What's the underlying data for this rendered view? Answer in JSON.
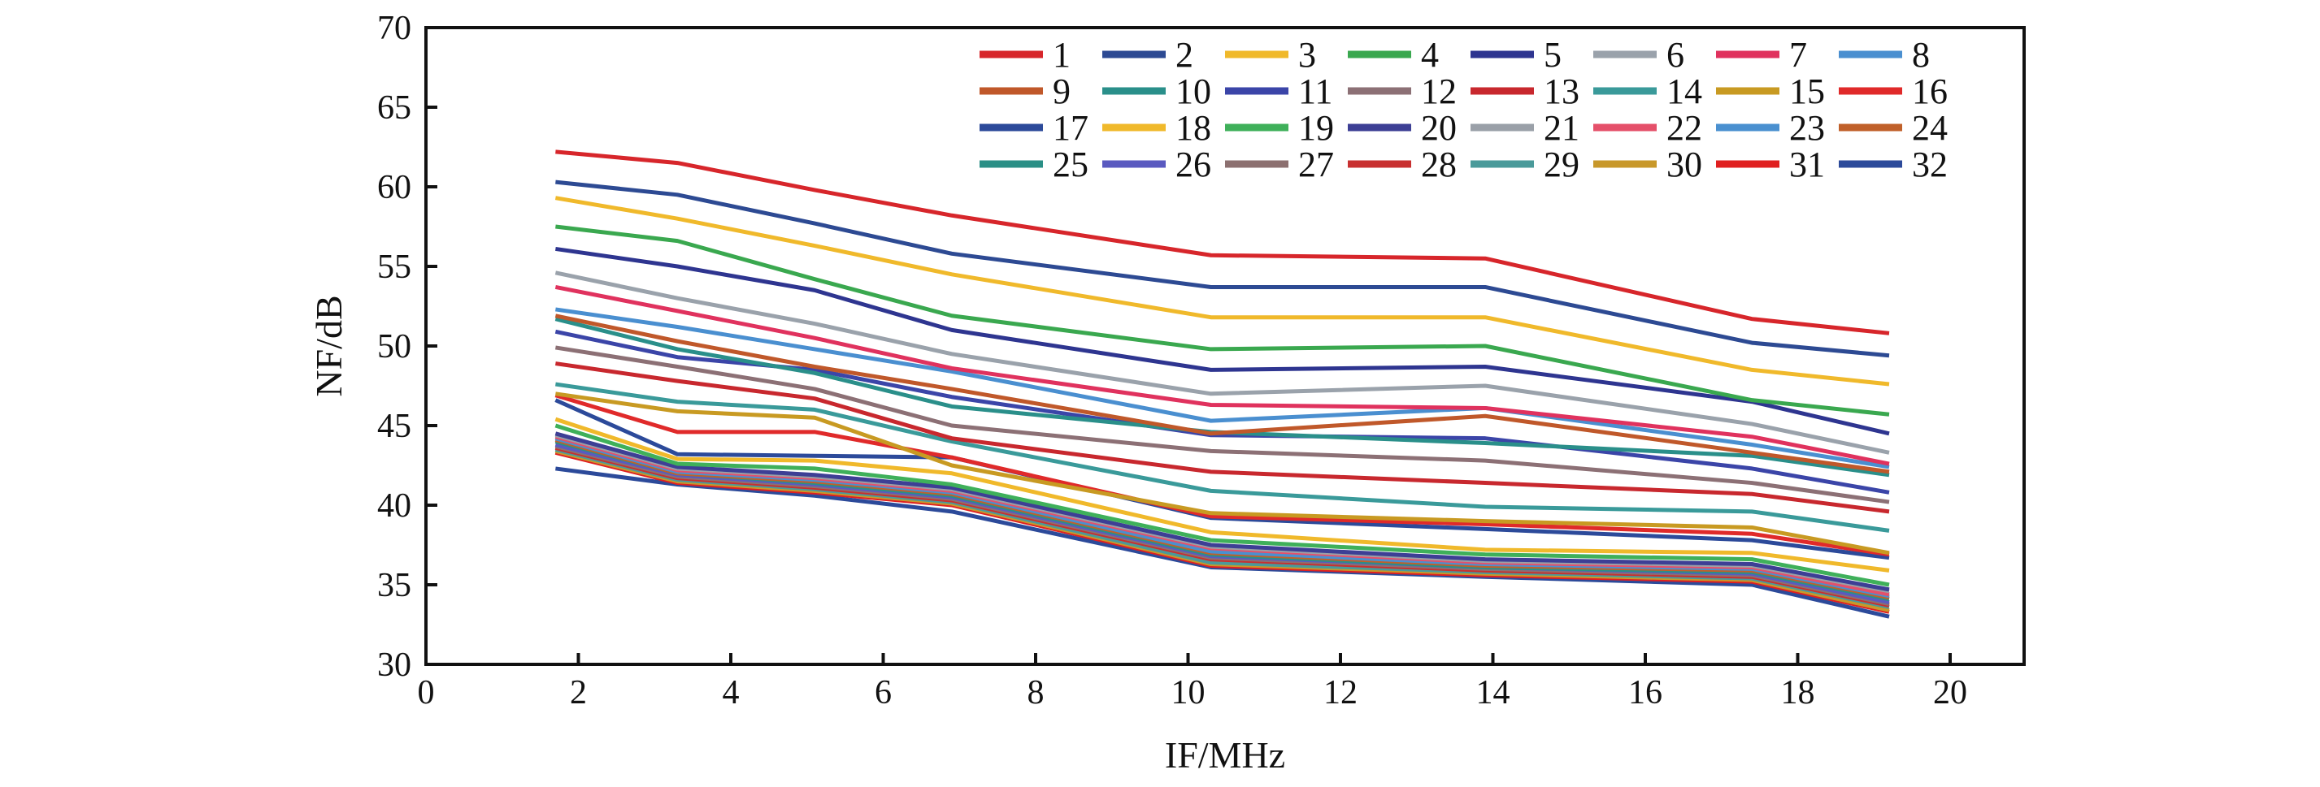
{
  "chart_data": {
    "type": "line",
    "title": "",
    "xlabel": "IF/MHz",
    "ylabel": "NF/dB",
    "xlim": [
      0,
      21
    ],
    "ylim": [
      30,
      70
    ],
    "xticks": [
      0,
      2,
      4,
      6,
      8,
      10,
      12,
      14,
      16,
      18,
      20
    ],
    "yticks": [
      30,
      35,
      40,
      45,
      50,
      55,
      60,
      65,
      70
    ],
    "grid": false,
    "legend_position": "top-right",
    "legend_columns": 8,
    "x": [
      1.7,
      3.3,
      5.1,
      6.9,
      10.3,
      13.9,
      17.4,
      19.2
    ],
    "series": [
      {
        "name": "1",
        "color": "#d7262b",
        "values": [
          62.2,
          61.5,
          59.8,
          58.2,
          55.7,
          55.5,
          51.7,
          50.8
        ]
      },
      {
        "name": "2",
        "color": "#2d4a93",
        "values": [
          60.3,
          59.5,
          57.7,
          55.8,
          53.7,
          53.7,
          50.2,
          49.4
        ]
      },
      {
        "name": "3",
        "color": "#f0b92b",
        "values": [
          59.3,
          58.0,
          56.3,
          54.5,
          51.8,
          51.8,
          48.5,
          47.6
        ]
      },
      {
        "name": "4",
        "color": "#3aa84f",
        "values": [
          57.5,
          56.6,
          54.2,
          51.9,
          49.8,
          50.0,
          46.6,
          45.7
        ]
      },
      {
        "name": "5",
        "color": "#2e3590",
        "values": [
          56.1,
          55.0,
          53.5,
          51.0,
          48.5,
          48.7,
          46.5,
          44.5
        ]
      },
      {
        "name": "6",
        "color": "#9aa2ab",
        "values": [
          54.6,
          53.0,
          51.4,
          49.5,
          47.0,
          47.5,
          45.1,
          43.3
        ]
      },
      {
        "name": "7",
        "color": "#e0325e",
        "values": [
          53.7,
          52.2,
          50.5,
          48.6,
          46.3,
          46.1,
          44.3,
          42.6
        ]
      },
      {
        "name": "8",
        "color": "#4a8fd0",
        "values": [
          52.3,
          51.2,
          49.8,
          48.4,
          45.3,
          46.1,
          43.8,
          42.4
        ]
      },
      {
        "name": "9",
        "color": "#c0582a",
        "values": [
          51.9,
          50.3,
          48.7,
          47.3,
          44.5,
          45.6,
          43.3,
          42.1
        ]
      },
      {
        "name": "10",
        "color": "#2a8f8a",
        "values": [
          51.7,
          49.8,
          48.3,
          46.2,
          44.6,
          43.9,
          43.1,
          41.9
        ]
      },
      {
        "name": "11",
        "color": "#3b45a8",
        "values": [
          50.9,
          49.3,
          48.5,
          46.8,
          44.4,
          44.2,
          42.3,
          40.8
        ]
      },
      {
        "name": "12",
        "color": "#8c7075",
        "values": [
          49.9,
          48.7,
          47.3,
          45.0,
          43.4,
          42.8,
          41.4,
          40.2
        ]
      },
      {
        "name": "13",
        "color": "#c8282e",
        "values": [
          48.9,
          47.8,
          46.7,
          44.2,
          42.1,
          41.4,
          40.7,
          39.6
        ]
      },
      {
        "name": "14",
        "color": "#3a9a9a",
        "values": [
          47.6,
          46.5,
          46.0,
          44.0,
          40.9,
          39.9,
          39.6,
          38.4
        ]
      },
      {
        "name": "15",
        "color": "#c89a22",
        "values": [
          47.0,
          45.9,
          45.5,
          42.5,
          39.5,
          39.0,
          38.6,
          37.0
        ]
      },
      {
        "name": "16",
        "color": "#e02a2a",
        "values": [
          46.9,
          44.6,
          44.6,
          43.0,
          39.3,
          38.8,
          38.2,
          36.9
        ]
      },
      {
        "name": "17",
        "color": "#2c4a9a",
        "values": [
          46.6,
          43.2,
          43.1,
          43.0,
          39.2,
          38.5,
          37.8,
          36.7
        ]
      },
      {
        "name": "18",
        "color": "#f0b92b",
        "values": [
          45.4,
          42.9,
          42.8,
          42.0,
          38.3,
          37.2,
          37.0,
          35.9
        ]
      },
      {
        "name": "19",
        "color": "#3fb05a",
        "values": [
          45.0,
          42.6,
          42.3,
          41.3,
          37.8,
          36.9,
          36.6,
          35.0
        ]
      },
      {
        "name": "20",
        "color": "#3d3f95",
        "values": [
          44.5,
          42.4,
          41.9,
          41.1,
          37.5,
          36.6,
          36.3,
          34.7
        ]
      },
      {
        "name": "21",
        "color": "#9aa0a8",
        "values": [
          44.4,
          42.3,
          41.8,
          41.0,
          37.4,
          36.5,
          36.2,
          34.6
        ]
      },
      {
        "name": "22",
        "color": "#e5506a",
        "values": [
          44.3,
          42.2,
          41.7,
          40.9,
          37.3,
          36.4,
          36.1,
          34.4
        ]
      },
      {
        "name": "23",
        "color": "#4a90d0",
        "values": [
          44.2,
          42.1,
          41.6,
          40.8,
          37.1,
          36.3,
          36.0,
          34.3
        ]
      },
      {
        "name": "24",
        "color": "#c0602a",
        "values": [
          44.1,
          42.0,
          41.5,
          40.7,
          37.0,
          36.2,
          35.9,
          34.2
        ]
      },
      {
        "name": "25",
        "color": "#2a8f86",
        "values": [
          44.0,
          42.0,
          41.4,
          40.6,
          36.9,
          36.1,
          35.8,
          34.1
        ]
      },
      {
        "name": "26",
        "color": "#5a5ac0",
        "values": [
          43.8,
          41.9,
          41.3,
          40.5,
          36.8,
          36.1,
          35.7,
          33.9
        ]
      },
      {
        "name": "27",
        "color": "#8c7070",
        "values": [
          43.7,
          41.8,
          41.2,
          40.4,
          36.7,
          36.0,
          35.6,
          33.8
        ]
      },
      {
        "name": "28",
        "color": "#c83030",
        "values": [
          43.6,
          41.7,
          41.1,
          40.3,
          36.6,
          35.9,
          35.5,
          33.7
        ]
      },
      {
        "name": "29",
        "color": "#4a9a9a",
        "values": [
          43.5,
          41.6,
          41.0,
          40.2,
          36.4,
          35.8,
          35.4,
          33.6
        ]
      },
      {
        "name": "30",
        "color": "#c8982a",
        "values": [
          43.4,
          41.5,
          40.9,
          40.1,
          36.3,
          35.7,
          35.3,
          33.4
        ]
      },
      {
        "name": "31",
        "color": "#e02020",
        "values": [
          43.3,
          41.4,
          40.8,
          40.0,
          36.2,
          35.6,
          35.2,
          33.3
        ]
      },
      {
        "name": "32",
        "color": "#2c4a9a",
        "values": [
          42.3,
          41.3,
          40.6,
          39.6,
          36.1,
          35.5,
          35.0,
          33.0
        ]
      }
    ]
  }
}
